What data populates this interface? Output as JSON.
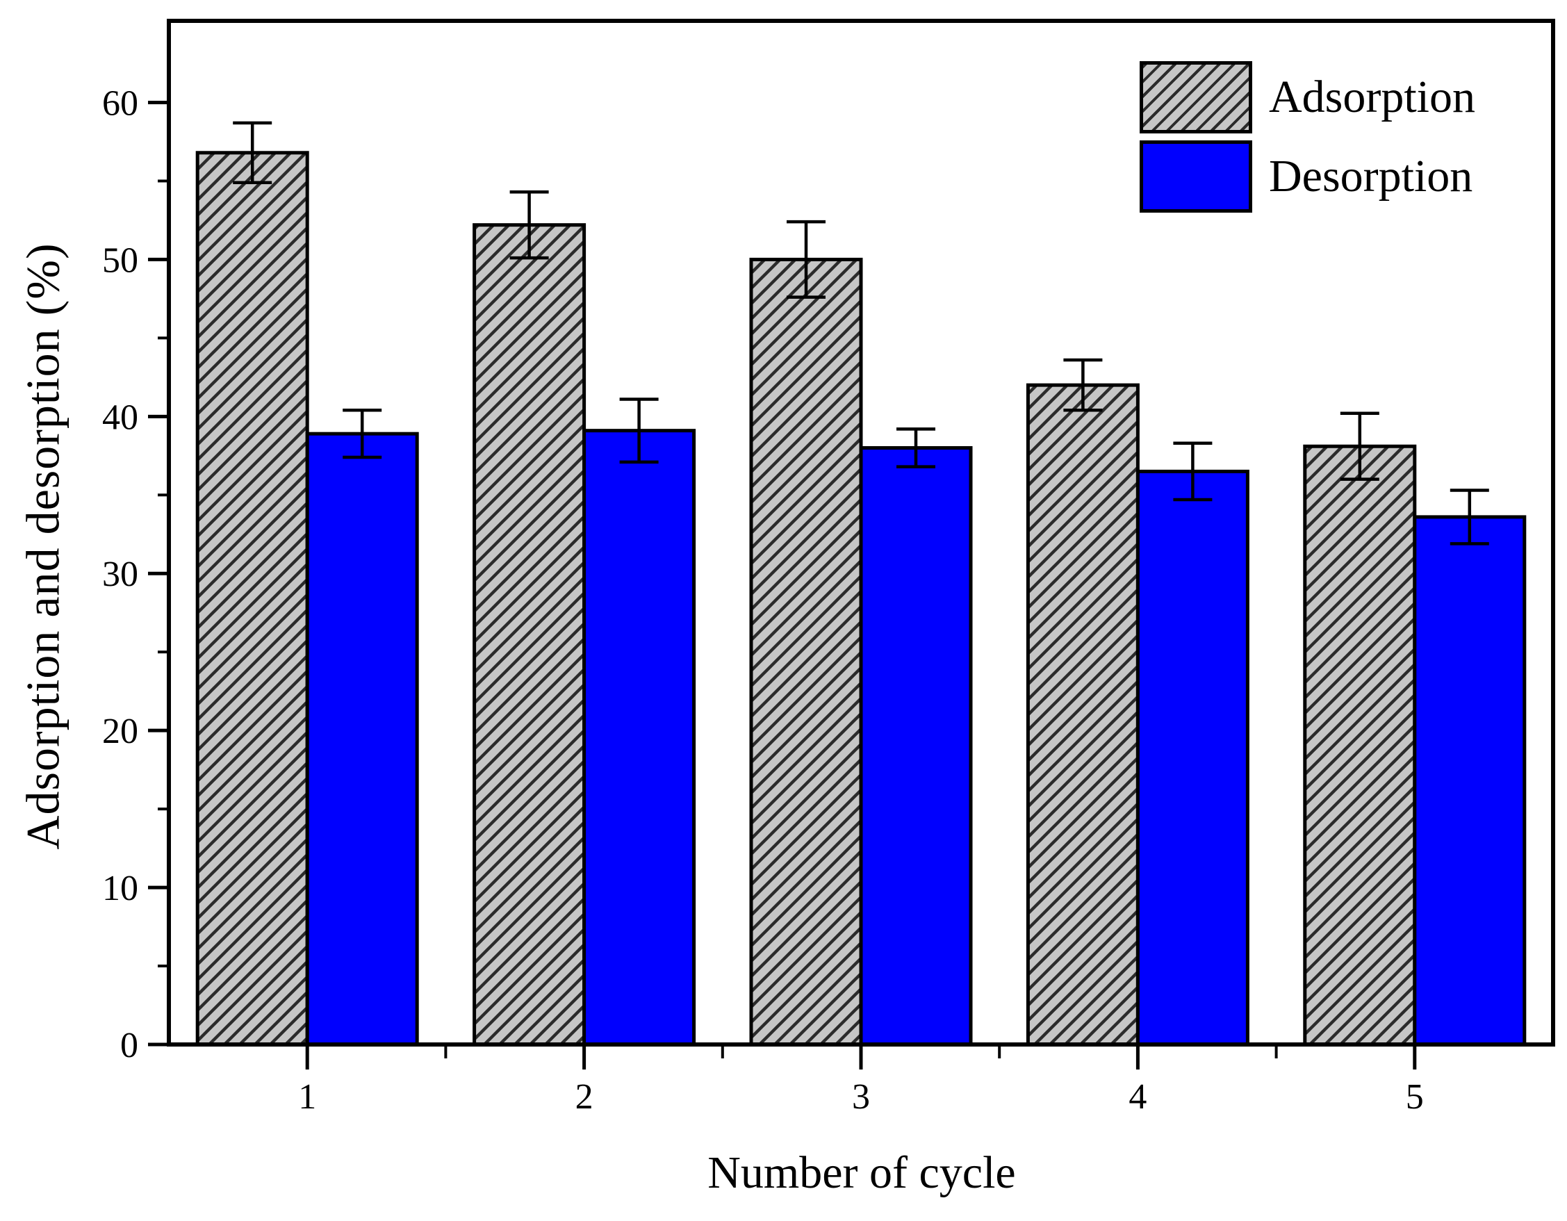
{
  "chart_data": {
    "type": "bar",
    "title": "",
    "xlabel": "Number of cycle",
    "ylabel": "Adsorption and desorption (%)",
    "categories": [
      1,
      2,
      3,
      4,
      5
    ],
    "series": [
      {
        "name": "Adsorption",
        "values": [
          56.8,
          52.2,
          50.0,
          42.0,
          38.1
        ],
        "errors": [
          1.9,
          2.1,
          2.4,
          1.6,
          2.1
        ],
        "fill_style": "diagonal-hatch",
        "fill_color": "#c6c6c6",
        "hatch_color": "#2b2b2b"
      },
      {
        "name": "Desorption",
        "values": [
          38.9,
          39.1,
          38.0,
          36.5,
          33.6
        ],
        "errors": [
          1.5,
          2.0,
          1.2,
          1.8,
          1.7
        ],
        "fill_style": "solid",
        "fill_color": "#0000fe"
      }
    ],
    "ylim": [
      0,
      65.2
    ],
    "yticks": [
      0,
      10,
      20,
      30,
      40,
      50,
      60
    ],
    "yminor_ticks": [
      5,
      15,
      25,
      35,
      45,
      55
    ],
    "xlim": [
      0.5,
      5.5
    ],
    "xticks": [
      1,
      2,
      3,
      4,
      5
    ],
    "xminor_ticks": [
      1.5,
      2.5,
      3.5,
      4.5
    ],
    "bar_group_width": 0.8,
    "grid": false,
    "legend_position": "top-right",
    "axis_color": "#000000",
    "error_bar_color": "#000000",
    "background": "#ffffff"
  }
}
